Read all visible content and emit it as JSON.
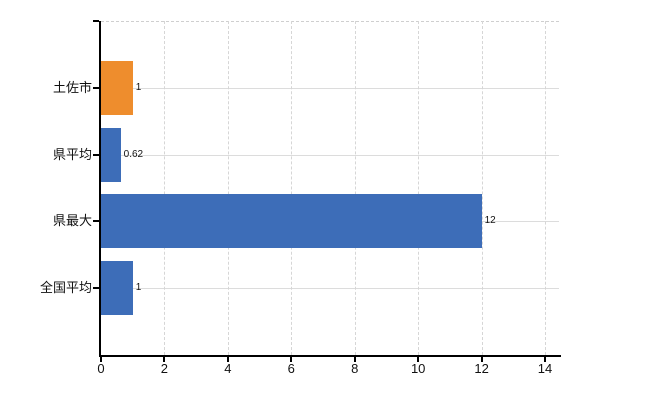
{
  "chart_data": {
    "type": "bar",
    "orientation": "horizontal",
    "categories": [
      "土佐市",
      "県平均",
      "県最大",
      "全国平均"
    ],
    "values": [
      1,
      0.62,
      12,
      1
    ],
    "value_labels": [
      "1",
      "0.62",
      "12",
      "1"
    ],
    "series": [
      {
        "name": "値",
        "values": [
          1,
          0.62,
          12,
          1
        ]
      }
    ],
    "bar_colors": [
      "#ee8d2d",
      "#3d6db8",
      "#3d6db8",
      "#3d6db8"
    ],
    "highlight_category": "土佐市",
    "highlight_color": "#ee8d2d",
    "base_color": "#3d6db8",
    "x_ticks": [
      "0",
      "2",
      "4",
      "6",
      "8",
      "10",
      "12",
      "14"
    ],
    "x_tick_values": [
      0,
      2,
      4,
      6,
      8,
      10,
      12,
      14
    ],
    "xlim": [
      0,
      14.44
    ],
    "title": "",
    "xlabel": "",
    "ylabel": "",
    "grid": true,
    "legend_position": "none",
    "axis_color": "#000000",
    "grid_color": "#d9d9d9",
    "background": "#ffffff"
  }
}
